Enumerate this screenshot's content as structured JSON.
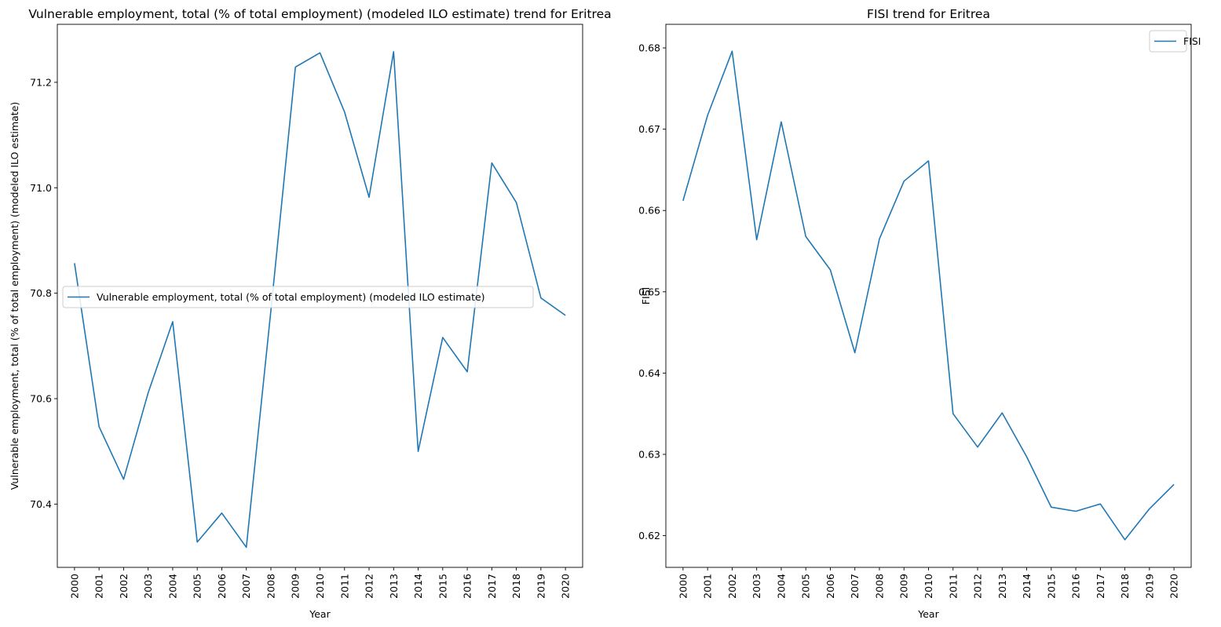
{
  "chart_data": [
    {
      "type": "line",
      "title": "Vulnerable employment, total (% of total employment) (modeled ILO estimate) trend for Eritrea",
      "xlabel": "Year",
      "ylabel": "Vulnerable employment, total (% of total employment) (modeled ILO estimate)",
      "categories": [
        "2000",
        "2001",
        "2002",
        "2003",
        "2004",
        "2005",
        "2006",
        "2007",
        "2008",
        "2009",
        "2010",
        "2011",
        "2012",
        "2013",
        "2014",
        "2015",
        "2016",
        "2017",
        "2018",
        "2019",
        "2020"
      ],
      "series": [
        {
          "name": "Vulnerable employment, total (% of total employment) (modeled ILO estimate)",
          "color": "#1f77b4",
          "values": [
            70.857,
            70.547,
            70.447,
            70.611,
            70.746,
            70.328,
            70.383,
            70.318,
            70.767,
            71.229,
            71.256,
            71.144,
            70.982,
            71.258,
            70.5,
            70.716,
            70.651,
            71.047,
            70.972,
            70.791,
            70.758
          ]
        }
      ],
      "ylim": [
        70.28,
        71.31
      ],
      "yticks": [
        "70.4",
        "70.6",
        "70.8",
        "71.0",
        "71.2"
      ],
      "legend": "center-left",
      "grid": false
    },
    {
      "type": "line",
      "title": "FISI trend for Eritrea",
      "xlabel": "Year",
      "ylabel": "FISI",
      "categories": [
        "2000",
        "2001",
        "2002",
        "2003",
        "2004",
        "2005",
        "2006",
        "2007",
        "2008",
        "2009",
        "2010",
        "2011",
        "2012",
        "2013",
        "2014",
        "2015",
        "2016",
        "2017",
        "2018",
        "2019",
        "2020"
      ],
      "series": [
        {
          "name": "FISI",
          "color": "#1f77b4",
          "values": [
            0.6612,
            0.6717,
            0.6796,
            0.6564,
            0.6709,
            0.6568,
            0.6527,
            0.6425,
            0.6565,
            0.6636,
            0.6661,
            0.635,
            0.6309,
            0.6351,
            0.6297,
            0.6235,
            0.623,
            0.6239,
            0.6195,
            0.6233,
            0.6263
          ]
        }
      ],
      "ylim": [
        0.6161,
        0.6829
      ],
      "yticks": [
        "0.62",
        "0.63",
        "0.64",
        "0.65",
        "0.66",
        "0.67",
        "0.68"
      ],
      "legend": "top-right",
      "grid": false
    }
  ]
}
